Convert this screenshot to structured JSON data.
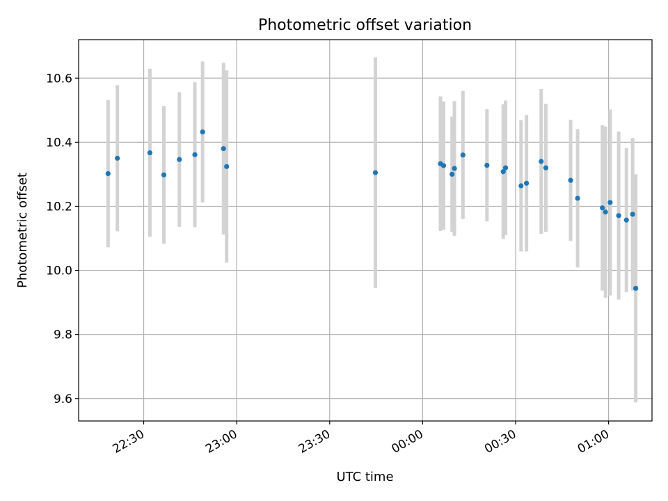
{
  "chart_data": {
    "type": "scatter",
    "title": "Photometric offset variation",
    "xlabel": "UTC time",
    "ylabel": "Photometric offset",
    "xlim": [
      "2000-01-01T22:09:00",
      "2000-01-02T01:14:00"
    ],
    "ylim": [
      9.53,
      10.72
    ],
    "grid": true,
    "x_ticks": [
      "22:30",
      "23:00",
      "23:30",
      "00:00",
      "00:30",
      "01:00"
    ],
    "y_ticks": [
      "9.6",
      "9.8",
      "10.0",
      "10.2",
      "10.4",
      "10.6"
    ],
    "colors": {
      "marker": "#1f77b4",
      "errorbar": "#d3d3d3"
    },
    "points": [
      {
        "x": "2000-01-01T22:18:30",
        "y": 10.302,
        "yerr": 0.23
      },
      {
        "x": "2000-01-01T22:21:30",
        "y": 10.35,
        "yerr": 0.228
      },
      {
        "x": "2000-01-01T22:32:00",
        "y": 10.367,
        "yerr": 0.262
      },
      {
        "x": "2000-01-01T22:36:30",
        "y": 10.298,
        "yerr": 0.215
      },
      {
        "x": "2000-01-01T22:41:30",
        "y": 10.346,
        "yerr": 0.21
      },
      {
        "x": "2000-01-01T22:46:30",
        "y": 10.361,
        "yerr": 0.226
      },
      {
        "x": "2000-01-01T22:49:00",
        "y": 10.432,
        "yerr": 0.22
      },
      {
        "x": "2000-01-01T22:55:45",
        "y": 10.38,
        "yerr": 0.268
      },
      {
        "x": "2000-01-01T22:56:45",
        "y": 10.324,
        "yerr": 0.3
      },
      {
        "x": "2000-01-01T23:44:45",
        "y": 10.305,
        "yerr": 0.36
      },
      {
        "x": "2000-01-02T00:05:45",
        "y": 10.333,
        "yerr": 0.21
      },
      {
        "x": "2000-01-02T00:06:45",
        "y": 10.327,
        "yerr": 0.2
      },
      {
        "x": "2000-01-02T00:09:30",
        "y": 10.3,
        "yerr": 0.18
      },
      {
        "x": "2000-01-02T00:10:15",
        "y": 10.318,
        "yerr": 0.21
      },
      {
        "x": "2000-01-02T00:13:00",
        "y": 10.36,
        "yerr": 0.2
      },
      {
        "x": "2000-01-02T00:20:45",
        "y": 10.328,
        "yerr": 0.175
      },
      {
        "x": "2000-01-02T00:26:00",
        "y": 10.308,
        "yerr": 0.21
      },
      {
        "x": "2000-01-02T00:26:45",
        "y": 10.32,
        "yerr": 0.21
      },
      {
        "x": "2000-01-02T00:31:45",
        "y": 10.264,
        "yerr": 0.205
      },
      {
        "x": "2000-01-02T00:33:30",
        "y": 10.272,
        "yerr": 0.213
      },
      {
        "x": "2000-01-02T00:38:15",
        "y": 10.34,
        "yerr": 0.226
      },
      {
        "x": "2000-01-02T00:39:45",
        "y": 10.32,
        "yerr": 0.2
      },
      {
        "x": "2000-01-02T00:47:45",
        "y": 10.281,
        "yerr": 0.189
      },
      {
        "x": "2000-01-02T00:50:00",
        "y": 10.225,
        "yerr": 0.216
      },
      {
        "x": "2000-01-02T00:58:00",
        "y": 10.195,
        "yerr": 0.258
      },
      {
        "x": "2000-01-02T00:59:00",
        "y": 10.182,
        "yerr": 0.267
      },
      {
        "x": "2000-01-02T01:00:30",
        "y": 10.212,
        "yerr": 0.29
      },
      {
        "x": "2000-01-02T01:03:15",
        "y": 10.171,
        "yerr": 0.262
      },
      {
        "x": "2000-01-02T01:05:45",
        "y": 10.157,
        "yerr": 0.225
      },
      {
        "x": "2000-01-02T01:07:45",
        "y": 10.175,
        "yerr": 0.238
      },
      {
        "x": "2000-01-02T01:08:45",
        "y": 9.944,
        "yerr": 0.356
      }
    ]
  }
}
